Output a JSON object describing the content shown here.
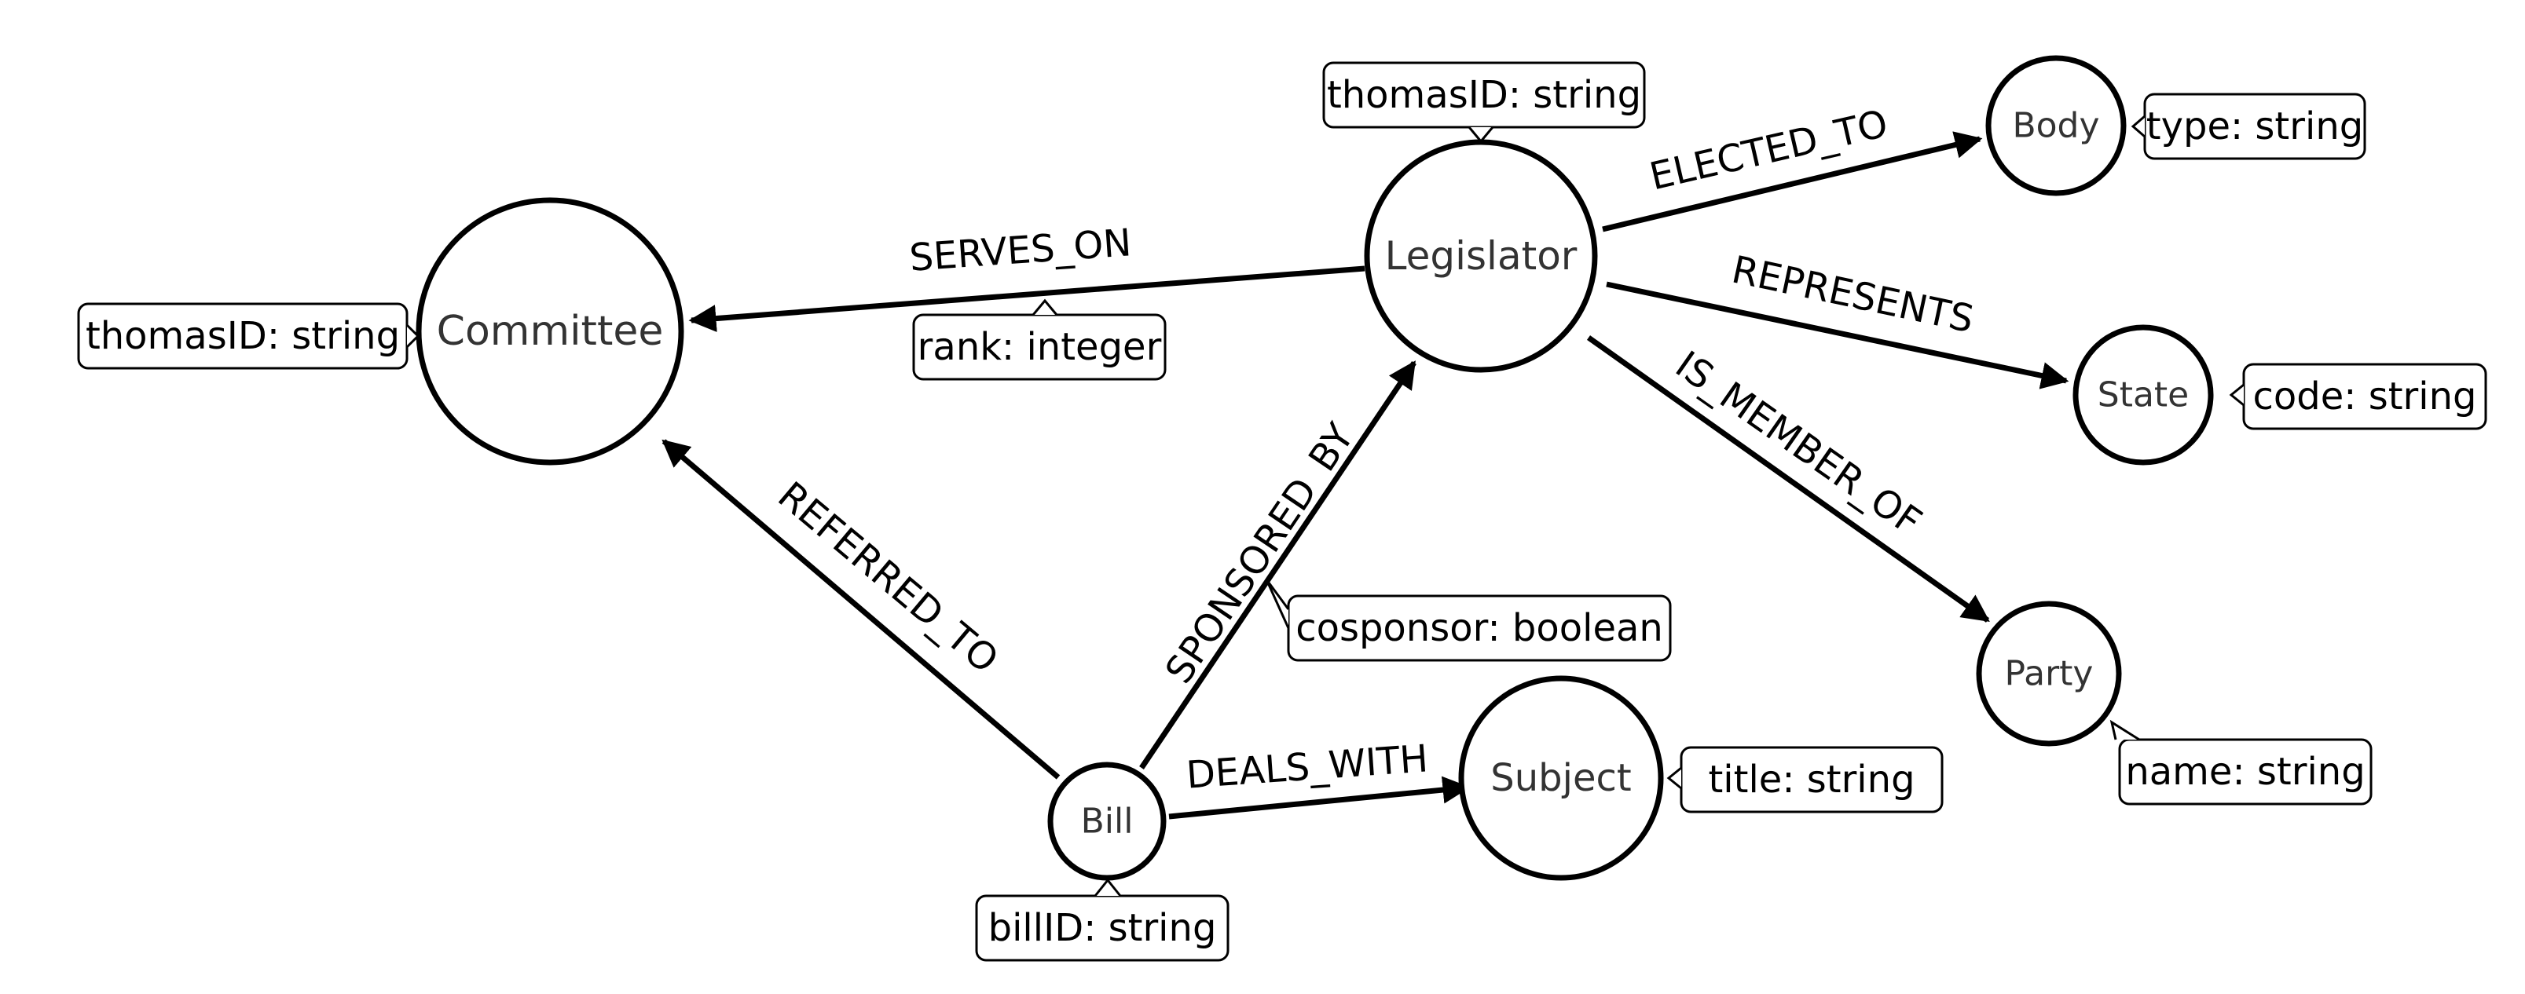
{
  "nodes": [
    {
      "id": "committee",
      "label": "Committee"
    },
    {
      "id": "legislator",
      "label": "Legislator"
    },
    {
      "id": "body",
      "label": "Body"
    },
    {
      "id": "state",
      "label": "State"
    },
    {
      "id": "party",
      "label": "Party"
    },
    {
      "id": "bill",
      "label": "Bill"
    },
    {
      "id": "subject",
      "label": "Subject"
    }
  ],
  "node_properties": [
    {
      "node": "legislator",
      "text": "thomasID: string"
    },
    {
      "node": "committee",
      "text": "thomasID: string"
    },
    {
      "node": "body",
      "text": "type: string"
    },
    {
      "node": "state",
      "text": "code: string"
    },
    {
      "node": "party",
      "text": "name: string"
    },
    {
      "node": "bill",
      "text": "billID: string"
    },
    {
      "node": "subject",
      "text": "title: string"
    }
  ],
  "edges": [
    {
      "id": "serves_on",
      "from": "legislator",
      "to": "committee",
      "label": "SERVES_ON",
      "property": "rank: integer"
    },
    {
      "id": "elected_to",
      "from": "legislator",
      "to": "body",
      "label": "ELECTED_TO"
    },
    {
      "id": "represents",
      "from": "legislator",
      "to": "state",
      "label": "REPRESENTS"
    },
    {
      "id": "is_member_of",
      "from": "legislator",
      "to": "party",
      "label": "IS_MEMBER_OF"
    },
    {
      "id": "referred_to",
      "from": "bill",
      "to": "committee",
      "label": "REFERRED_TO"
    },
    {
      "id": "sponsored_by",
      "from": "bill",
      "to": "legislator",
      "label": "SPONSORED_BY",
      "property": "cosponsor: boolean"
    },
    {
      "id": "deals_with",
      "from": "bill",
      "to": "subject",
      "label": "DEALS_WITH"
    }
  ]
}
